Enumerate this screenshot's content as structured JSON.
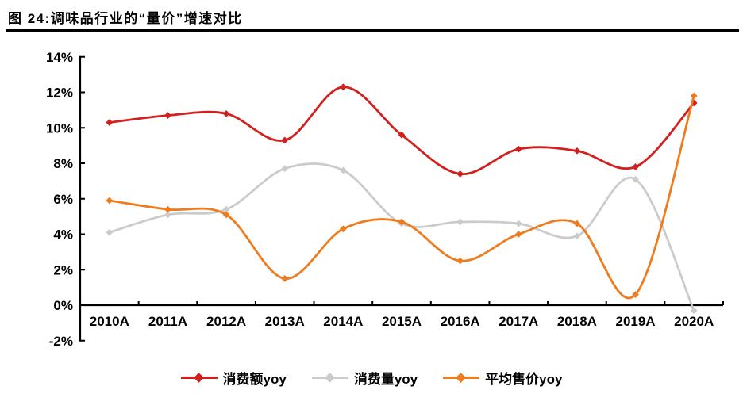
{
  "title": "图 24:调味品行业的“量价”增速对比",
  "chart_data": {
    "type": "line",
    "smooth": true,
    "grid": false,
    "legend_position": "bottom",
    "title": "图 24:调味品行业的“量价”增速对比",
    "xlabel": "",
    "ylabel": "",
    "ylim": [
      -2,
      14
    ],
    "ytick_step": 2,
    "categories": [
      "2010A",
      "2011A",
      "2012A",
      "2013A",
      "2014A",
      "2015A",
      "2016A",
      "2017A",
      "2018A",
      "2019A",
      "2020A"
    ],
    "series": [
      {
        "name": "消费额yoy",
        "color": "#d2201e",
        "values": [
          10.3,
          10.7,
          10.8,
          9.3,
          12.3,
          9.6,
          7.4,
          8.8,
          8.7,
          7.8,
          11.4
        ]
      },
      {
        "name": "消费量yoy",
        "color": "#cbcbcb",
        "values": [
          4.1,
          5.1,
          5.4,
          7.7,
          7.6,
          4.6,
          4.7,
          4.6,
          3.9,
          7.1,
          -0.3
        ]
      },
      {
        "name": "平均售价yoy",
        "color": "#ee7c1f",
        "values": [
          5.9,
          5.4,
          5.1,
          1.5,
          4.3,
          4.7,
          2.5,
          4.0,
          4.6,
          0.6,
          11.8
        ]
      }
    ],
    "yticks": [
      {
        "value": 14,
        "label": "14%"
      },
      {
        "value": 12,
        "label": "12%"
      },
      {
        "value": 10,
        "label": "10%"
      },
      {
        "value": 8,
        "label": "8%"
      },
      {
        "value": 6,
        "label": "6%"
      },
      {
        "value": 4,
        "label": "4%"
      },
      {
        "value": 2,
        "label": "2%"
      },
      {
        "value": 0,
        "label": "0%"
      },
      {
        "value": -2,
        "label": "-2%"
      }
    ],
    "axis_color": "#000000",
    "label_color": "#000000"
  }
}
